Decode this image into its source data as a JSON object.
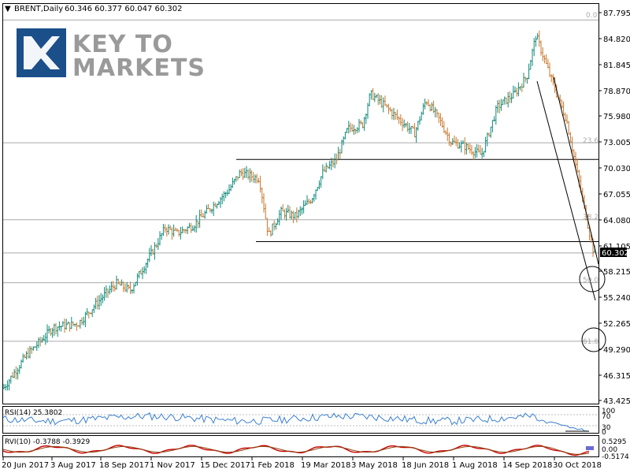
{
  "header": {
    "arrow": "▼",
    "symbol": "BRENT,Daily",
    "ohlc": "60.346 60.377 60.047 60.302"
  },
  "logo": {
    "line1": "KEY TO",
    "line2": "MARKETS",
    "accent": "#1b4f8a"
  },
  "current_price": "60.302",
  "fib_labels": [
    "0.0",
    "23.6",
    "38.2",
    "50.0",
    "61.8"
  ],
  "rsi": {
    "label": "RSI(14) 25.3802",
    "levels": [
      "100",
      "70",
      "30",
      "0"
    ]
  },
  "rvi": {
    "label": "RVI(10) -0.3788 -0.3929",
    "levels": [
      "0.5295",
      "0.00",
      "-0.5174"
    ]
  },
  "colors": {
    "up": "#0e8a7a",
    "down": "#c8772d",
    "rsi": "#3a7fd0",
    "rvi_main": "#cc0000",
    "rvi_signal": "#8b4513"
  },
  "chart_data": {
    "type": "ohlc",
    "title": "BRENT,Daily",
    "x_tick_labels": [
      "20 Jun 2017",
      "3 Aug 2017",
      "18 Sep 2017",
      "1 Nov 2017",
      "15 Dec 2017",
      "1 Feb 2018",
      "19 Mar 2018",
      "3 May 2018",
      "18 Jun 2018",
      "1 Aug 2018",
      "14 Sep 2018",
      "30 Oct 2018"
    ],
    "y_tick_labels": [
      "87.795",
      "84.820",
      "81.845",
      "78.870",
      "75.980",
      "73.005",
      "70.030",
      "67.055",
      "64.080",
      "61.105",
      "58.215",
      "55.240",
      "52.265",
      "49.290",
      "46.315",
      "43.425"
    ],
    "ylim": [
      43.425,
      87.795
    ],
    "x": [
      "2017-06-20",
      "2017-07-10",
      "2017-07-25",
      "2017-08-03",
      "2017-08-25",
      "2017-09-18",
      "2017-09-28",
      "2017-10-10",
      "2017-11-01",
      "2017-11-10",
      "2017-11-20",
      "2017-12-05",
      "2017-12-15",
      "2018-01-05",
      "2018-01-15",
      "2018-02-01",
      "2018-02-09",
      "2018-02-20",
      "2018-03-05",
      "2018-03-19",
      "2018-03-29",
      "2018-04-10",
      "2018-04-20",
      "2018-05-03",
      "2018-05-10",
      "2018-05-22",
      "2018-06-05",
      "2018-06-18",
      "2018-06-28",
      "2018-07-10",
      "2018-07-20",
      "2018-08-01",
      "2018-08-16",
      "2018-08-30",
      "2018-09-14",
      "2018-09-25",
      "2018-10-03",
      "2018-10-17",
      "2018-10-30",
      "2018-11-13",
      "2018-11-23"
    ],
    "y": [
      44.8,
      48.5,
      50.5,
      51.8,
      52.2,
      55.6,
      56.8,
      56.0,
      61.0,
      63.2,
      62.5,
      63.5,
      64.8,
      67.5,
      69.5,
      68.8,
      62.3,
      65.0,
      64.5,
      66.5,
      69.5,
      71.0,
      74.5,
      75.0,
      78.5,
      77.2,
      75.5,
      74.0,
      77.8,
      75.5,
      73.0,
      72.5,
      71.5,
      77.0,
      78.5,
      80.5,
      85.2,
      80.0,
      75.5,
      66.5,
      60.3
    ],
    "horizontal_levels": [
      72.9,
      71.0,
      61.6,
      59.8,
      56.9,
      50.2
    ],
    "channel": {
      "upper": [
        [
          "2018-10-12",
          79.8
        ],
        [
          "2018-11-26",
          58.0
        ]
      ],
      "lower": [
        [
          "2018-10-03",
          78.5
        ],
        [
          "2018-11-23",
          56.0
        ]
      ]
    },
    "rsi_current": 25.3802,
    "rvi_current": [
      -0.3788,
      -0.3929
    ],
    "grid": false
  }
}
